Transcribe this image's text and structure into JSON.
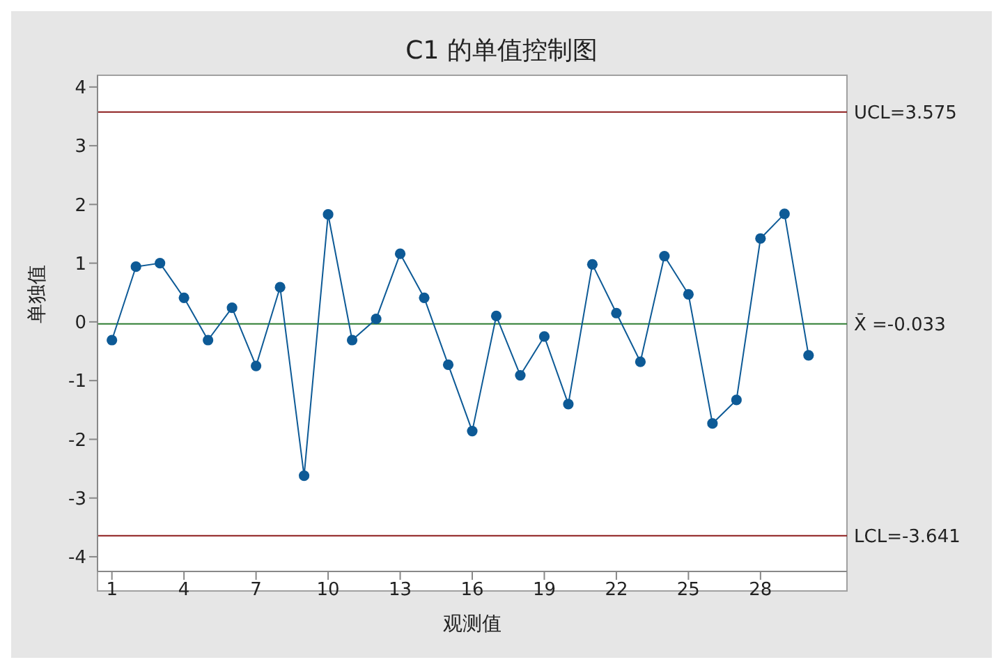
{
  "chart_data": {
    "type": "line",
    "title": "C1 的单值控制图",
    "xlabel": "观测值",
    "ylabel": "单独值",
    "x": [
      1,
      2,
      3,
      4,
      5,
      6,
      7,
      8,
      9,
      10,
      11,
      12,
      13,
      14,
      15,
      16,
      17,
      18,
      19,
      20,
      21,
      22,
      23,
      24,
      25,
      26,
      27,
      28,
      29,
      30
    ],
    "series": [
      {
        "color": "#0d5a96",
        "values": [
          -0.31,
          0.94,
          1.0,
          0.41,
          -0.31,
          0.24,
          -0.75,
          0.59,
          -2.62,
          1.83,
          -0.31,
          0.05,
          1.16,
          0.41,
          -0.73,
          -1.86,
          0.1,
          -0.91,
          -0.25,
          -1.4,
          0.98,
          0.15,
          -0.68,
          1.12,
          0.47,
          -1.73,
          -1.33,
          1.42,
          1.84,
          -0.57
        ]
      }
    ],
    "xlim": [
      0.4,
      31.6
    ],
    "xticks": [
      1,
      4,
      7,
      10,
      13,
      16,
      19,
      22,
      25,
      28
    ],
    "ylim": [
      -4.25,
      4.2
    ],
    "yticks": [
      -4,
      -3,
      -2,
      -1,
      0,
      1,
      2,
      3,
      4
    ],
    "ref_lines": [
      {
        "axis": "y",
        "value": 3.575,
        "label": "UCL=3.575",
        "color": "#8b1a1a"
      },
      {
        "axis": "y",
        "value": -0.033,
        "label": "X̄ =-0.033",
        "color": "#2e7d32"
      },
      {
        "axis": "y",
        "value": -3.641,
        "label": "LCL=-3.641",
        "color": "#8b1a1a"
      }
    ],
    "legend": false,
    "marker": "circle",
    "line_style": "solid"
  }
}
